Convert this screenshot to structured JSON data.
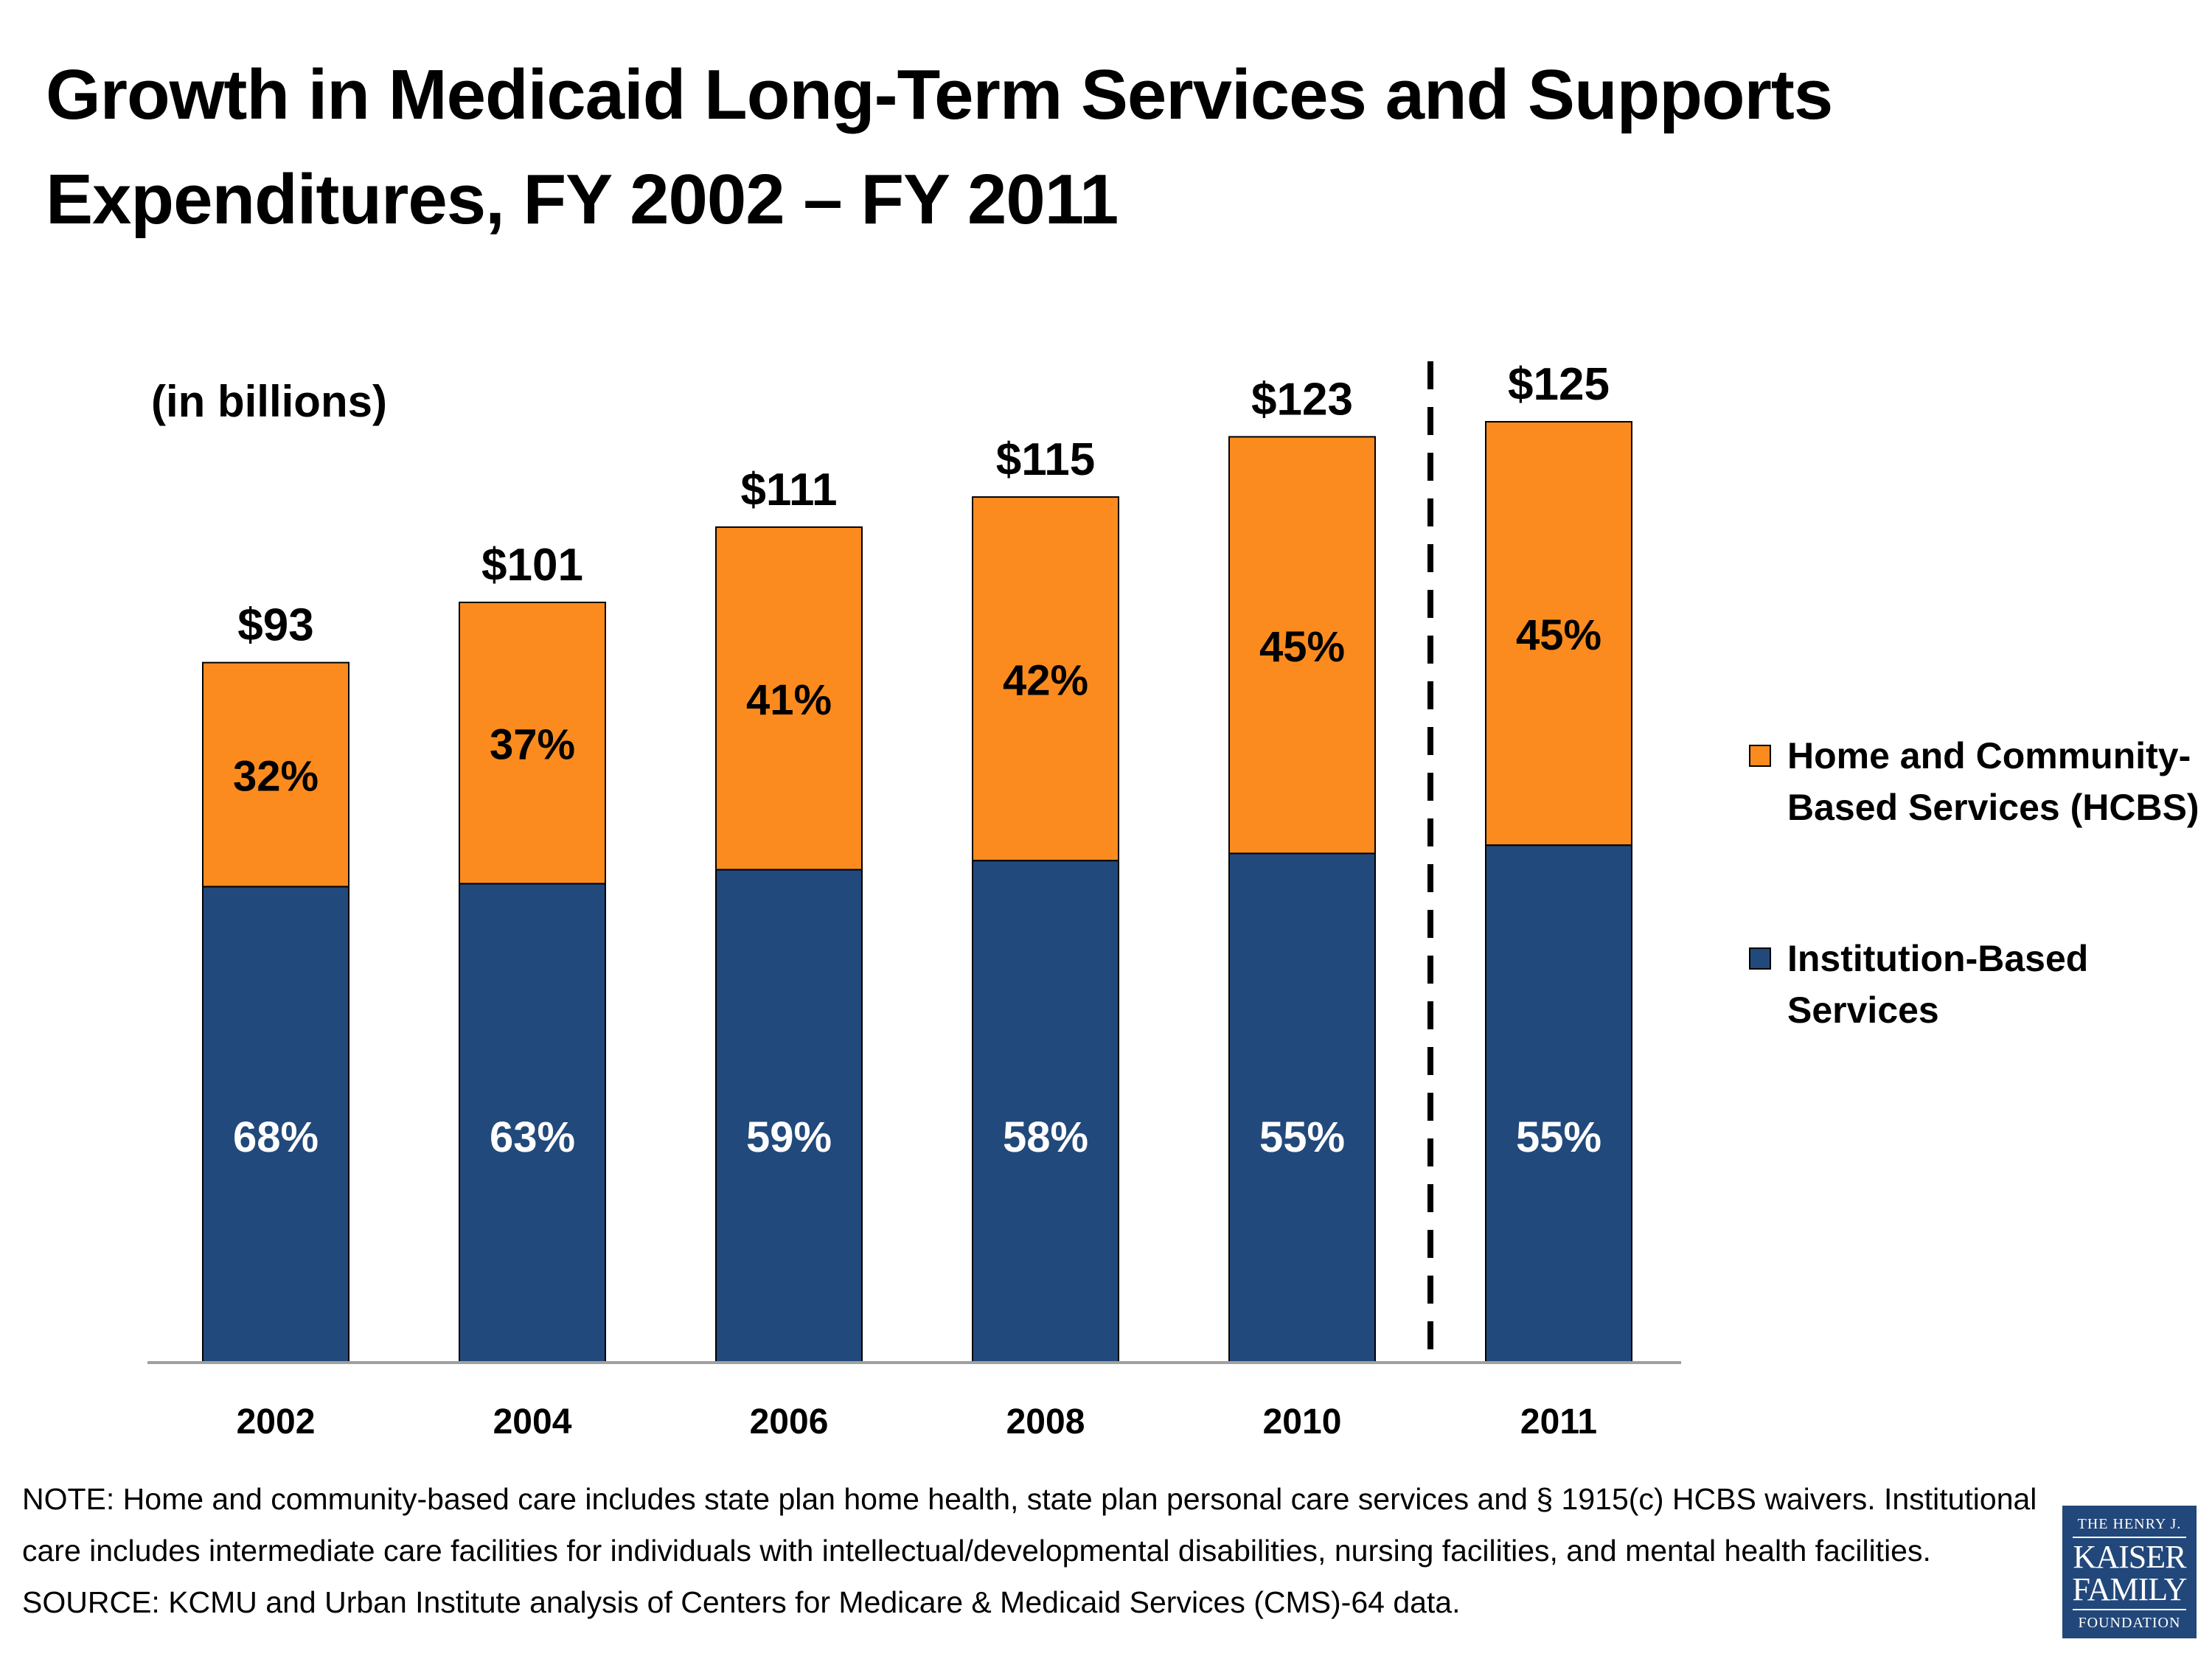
{
  "title": "Growth in Medicaid Long-Term Services and Supports Expenditures, FY 2002 – FY 2011",
  "unit_label": "(in billions)",
  "colors": {
    "hcbs": "#fb8b1e",
    "institution": "#22497b",
    "axis": "#a0a0a0"
  },
  "legend": {
    "hcbs": "Home and Community-Based Services (HCBS)",
    "institution": "Institution-Based Services"
  },
  "chart_data": {
    "type": "bar",
    "stacked": true,
    "title": "Growth in Medicaid Long-Term Services and Supports Expenditures, FY 2002 – FY 2011",
    "ylabel": "(in billions)",
    "xlabel": "",
    "ylim": [
      0,
      125
    ],
    "categories": [
      "2002",
      "2004",
      "2006",
      "2008",
      "2010",
      "2011"
    ],
    "totals": [
      93,
      101,
      111,
      115,
      123,
      125
    ],
    "total_labels": [
      "$93",
      "$101",
      "$111",
      "$115",
      "$123",
      "$125"
    ],
    "series": [
      {
        "name": "Institution-Based Services",
        "percent": [
          68,
          63,
          59,
          58,
          55,
          55
        ],
        "labels": [
          "68%",
          "63%",
          "59%",
          "58%",
          "55%",
          "55%"
        ]
      },
      {
        "name": "Home and Community-Based Services (HCBS)",
        "percent": [
          32,
          37,
          41,
          42,
          45,
          45
        ],
        "labels": [
          "32%",
          "37%",
          "41%",
          "42%",
          "45%",
          "45%"
        ]
      }
    ],
    "divider_after": "2010",
    "legend_position": "right"
  },
  "note": "NOTE: Home and community-based care includes state plan home health, state plan personal care services and § 1915(c) HCBS waivers. Institutional care includes intermediate care facilities for individuals with intellectual/developmental disabilities, nursing facilities, and mental health facilities.",
  "source": "SOURCE: KCMU and Urban Institute analysis of Centers for Medicare & Medicaid Services (CMS)-64 data.",
  "logo": {
    "line1": "THE HENRY J.",
    "line2": "KAISER",
    "line3": "FAMILY",
    "line4": "FOUNDATION"
  }
}
